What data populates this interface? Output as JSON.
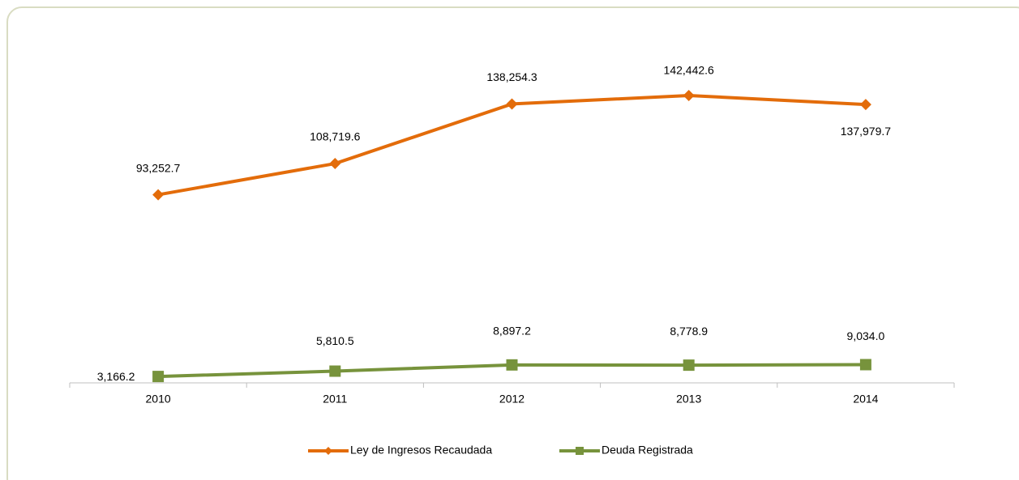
{
  "chart_data": {
    "type": "line",
    "categories": [
      "2010",
      "2011",
      "2012",
      "2013",
      "2014"
    ],
    "series": [
      {
        "name": "Ley de Ingresos Recaudada",
        "color": "#e36c0a",
        "marker": "diamond",
        "values": [
          93252.7,
          108719.6,
          138254.3,
          142442.6,
          137979.7
        ],
        "value_labels": [
          "93,252.7",
          "108,719.6",
          "138,254.3",
          "142,442.6",
          "137,979.7"
        ]
      },
      {
        "name": "Deuda Registrada",
        "color": "#77933c",
        "marker": "square",
        "values": [
          3166.2,
          5810.5,
          8897.2,
          8778.9,
          9034.0
        ],
        "value_labels": [
          "3,166.2",
          "5,810.5",
          "8,897.2",
          "8,778.9",
          "9,034.0"
        ]
      }
    ],
    "legend": "bottom"
  }
}
